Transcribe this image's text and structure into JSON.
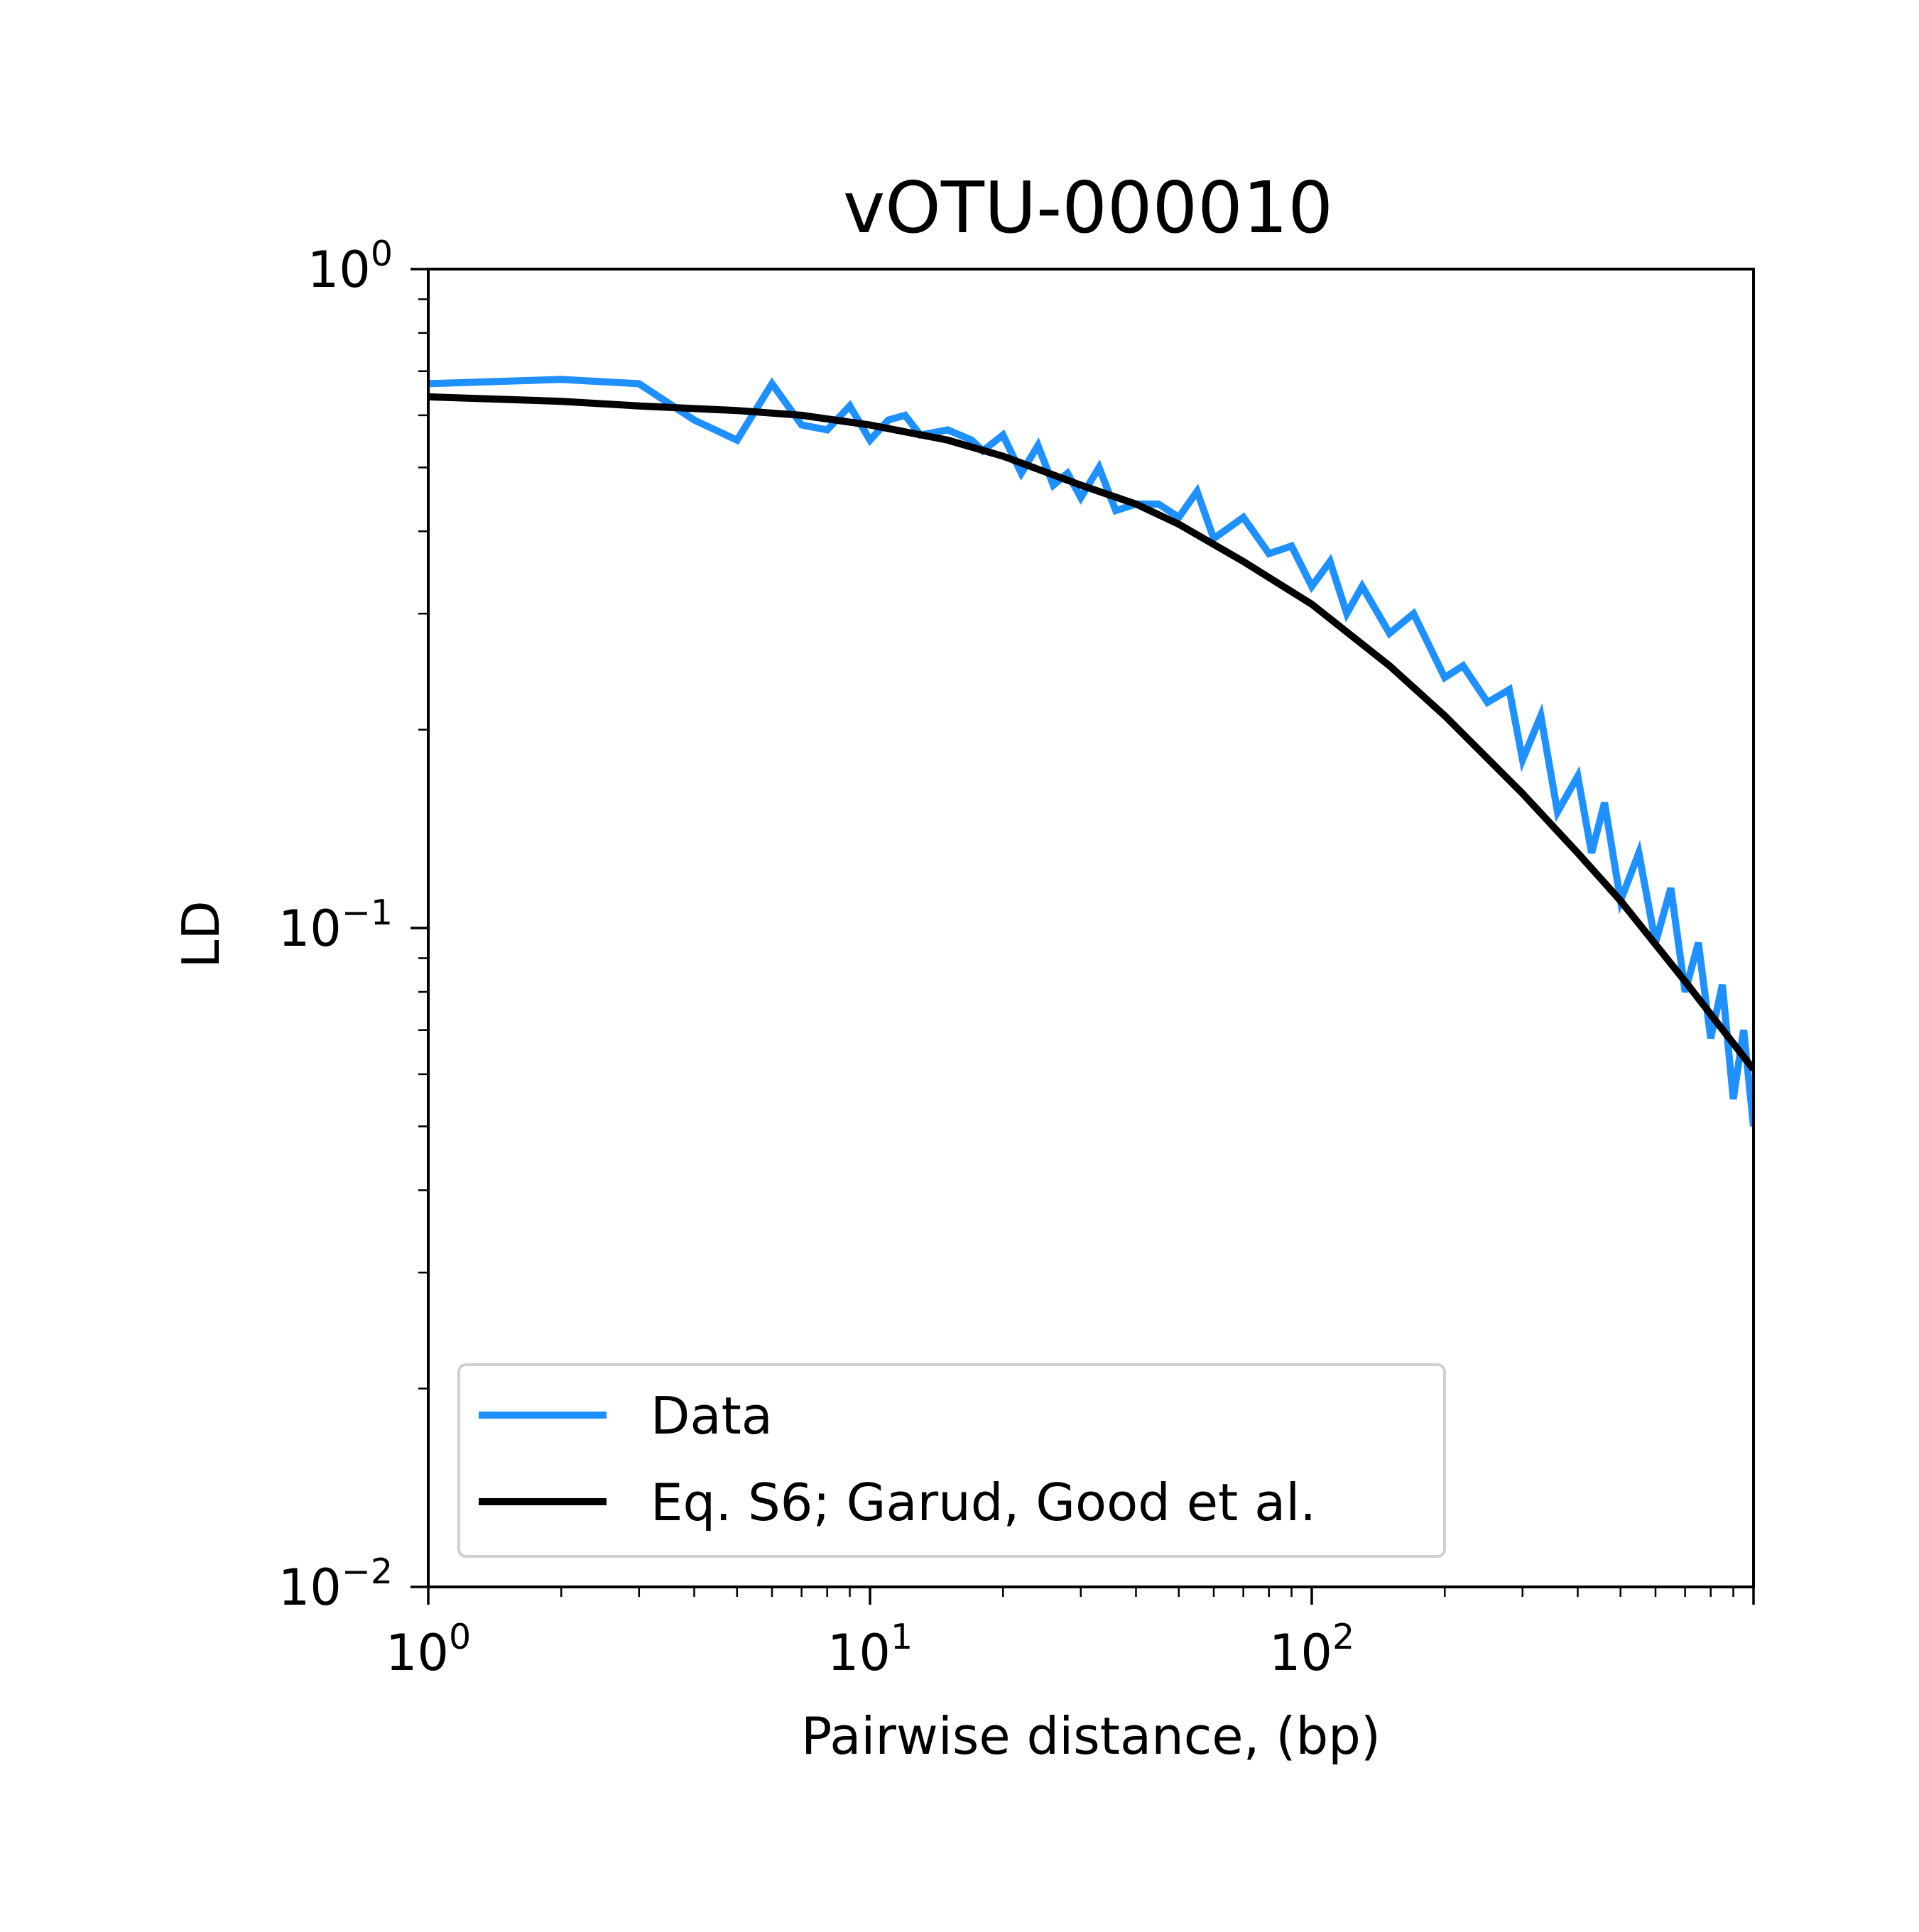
{
  "chart_data": {
    "type": "line",
    "title": "vOTU-000010",
    "xlabel": "Pairwise distance, (bp)",
    "ylabel": "LD",
    "xscale": "log",
    "yscale": "log",
    "xlim": [
      1,
      1000
    ],
    "ylim": [
      0.01,
      1
    ],
    "grid": false,
    "legend_placement": "lower-left",
    "x_ticks": [
      {
        "value": 1,
        "base": "10",
        "exp": "0"
      },
      {
        "value": 10,
        "base": "10",
        "exp": "1"
      },
      {
        "value": 100,
        "base": "10",
        "exp": "2"
      }
    ],
    "y_ticks": [
      {
        "value": 1,
        "base": "10",
        "exp": "0"
      },
      {
        "value": 0.1,
        "base": "10",
        "exp": "−1"
      },
      {
        "value": 0.01,
        "base": "10",
        "exp": "−2"
      }
    ],
    "series": [
      {
        "name": "Data",
        "color": "#1e90ff",
        "x": [
          1,
          2,
          3,
          4,
          5,
          6,
          7,
          8,
          9,
          10,
          11,
          12,
          13,
          15,
          17,
          18,
          20,
          22,
          24,
          26,
          28,
          30,
          33,
          36,
          40,
          45,
          50,
          55,
          60,
          70,
          80,
          90,
          100,
          110,
          120,
          130,
          150,
          170,
          200,
          220,
          250,
          280,
          300,
          330,
          360,
          400,
          430,
          460,
          500,
          550,
          600,
          650,
          700,
          750,
          800,
          850,
          900,
          950,
          1000
        ],
        "y": [
          0.67,
          0.68,
          0.67,
          0.59,
          0.55,
          0.67,
          0.58,
          0.57,
          0.62,
          0.55,
          0.59,
          0.6,
          0.56,
          0.57,
          0.55,
          0.53,
          0.56,
          0.49,
          0.54,
          0.47,
          0.49,
          0.45,
          0.5,
          0.43,
          0.44,
          0.44,
          0.42,
          0.46,
          0.39,
          0.42,
          0.37,
          0.38,
          0.33,
          0.36,
          0.3,
          0.33,
          0.28,
          0.3,
          0.24,
          0.25,
          0.22,
          0.23,
          0.18,
          0.21,
          0.15,
          0.17,
          0.13,
          0.155,
          0.11,
          0.13,
          0.095,
          0.115,
          0.08,
          0.095,
          0.068,
          0.082,
          0.055,
          0.07,
          0.05
        ]
      },
      {
        "name": "Eq. S6; Garud, Good et al.",
        "color": "#000000",
        "x": [
          1,
          2,
          3,
          5,
          7,
          10,
          15,
          20,
          30,
          40,
          50,
          70,
          100,
          150,
          200,
          300,
          400,
          500,
          700,
          1000
        ],
        "y": [
          0.64,
          0.63,
          0.62,
          0.61,
          0.6,
          0.58,
          0.55,
          0.52,
          0.47,
          0.44,
          0.41,
          0.36,
          0.31,
          0.25,
          0.21,
          0.16,
          0.13,
          0.11,
          0.083,
          0.061
        ]
      }
    ]
  }
}
